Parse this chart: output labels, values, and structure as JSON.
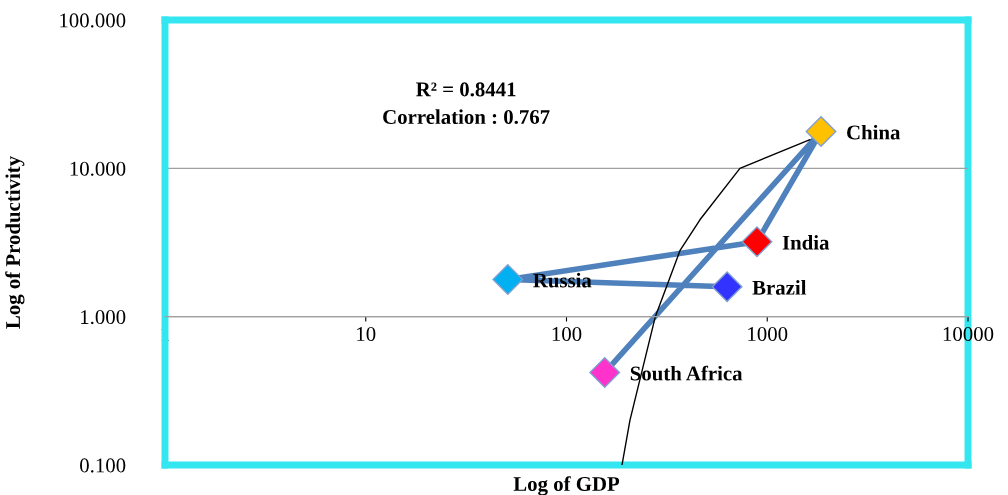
{
  "chart_data": {
    "type": "line",
    "xlabel": "Log of GDP",
    "ylabel": "Log of Productivity",
    "log": "xy",
    "grid": "y",
    "legend": false,
    "xlim": [
      1,
      10000
    ],
    "xticks": [
      1,
      10,
      100,
      1000,
      10000
    ],
    "ylim": [
      0.1,
      100
    ],
    "yticks": [
      {
        "value": 0.1,
        "label": "0.100"
      },
      {
        "value": 1,
        "label": "1.000"
      },
      {
        "value": 10,
        "label": "10.000"
      },
      {
        "value": 100,
        "label": "100.000"
      }
    ],
    "annotations": [
      "R² = 0.8441",
      "Correlation : 0.767",
      {
        "text": "China",
        "x": 1853,
        "y": 17.7
      },
      {
        "text": "India",
        "x": 889,
        "y": 3.2
      },
      {
        "text": "Russia",
        "x": 51,
        "y": 1.78
      },
      {
        "text": "Brazil",
        "x": 631,
        "y": 1.59
      },
      {
        "text": "South Africa",
        "x": 155,
        "y": 0.42
      }
    ],
    "series": [
      {
        "color": "#4f81bd",
        "marker": "diamond",
        "x": [
          155,
          1853,
          889,
          51,
          631
        ],
        "values": [
          0.42,
          17.7,
          3.2,
          1.78,
          1.59
        ],
        "colors": [
          "#ff33cc",
          "#ffc000",
          "#ff0000",
          "#00b0f0",
          "#3333ff"
        ]
      },
      {
        "color": "#000000",
        "marker": "none",
        "x": [
          189,
          207,
          277,
          368,
          462,
          731,
          1633
        ],
        "values": [
          0.1,
          0.2,
          1,
          2.8,
          4.5,
          10,
          15.6
        ]
      }
    ]
  }
}
